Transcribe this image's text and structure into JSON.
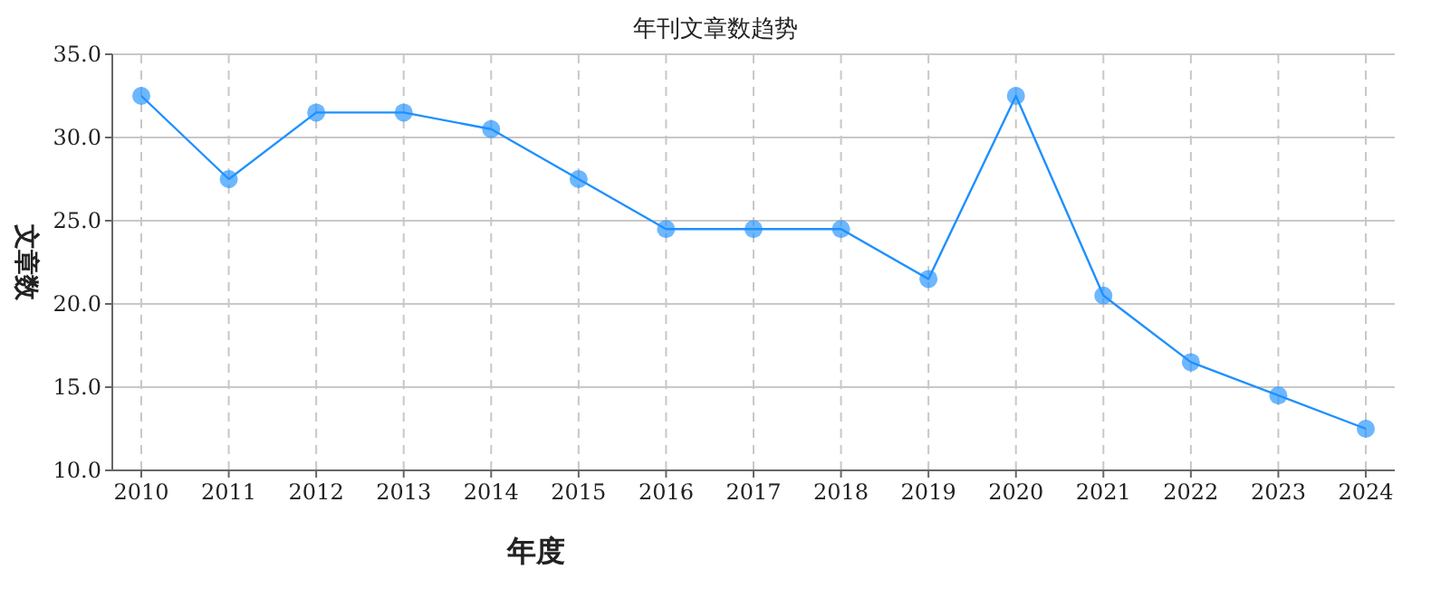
{
  "chart_data": {
    "type": "line",
    "title": "年刊文章数趋势",
    "xlabel": "年度",
    "ylabel": "文章数",
    "categories": [
      "2010",
      "2011",
      "2012",
      "2013",
      "2014",
      "2015",
      "2016",
      "2017",
      "2018",
      "2019",
      "2020",
      "2021",
      "2022",
      "2023",
      "2024"
    ],
    "series": [
      {
        "color": "#1e90ff",
        "values": [
          32.5,
          27.5,
          31.5,
          31.5,
          30.5,
          27.5,
          24.5,
          24.5,
          24.5,
          21.5,
          32.5,
          20.5,
          16.5,
          14.5,
          12.5
        ]
      }
    ],
    "ylim": [
      10,
      35
    ],
    "yticks": [
      {
        "value": 10,
        "label": "10.0"
      },
      {
        "value": 15,
        "label": "15.0"
      },
      {
        "value": 20,
        "label": "20.0"
      },
      {
        "value": 25,
        "label": "25.0"
      },
      {
        "value": 30,
        "label": "30.0"
      },
      {
        "value": 35,
        "label": "35.0"
      }
    ],
    "grid": true,
    "marker": "circle",
    "line_style": "solid"
  }
}
